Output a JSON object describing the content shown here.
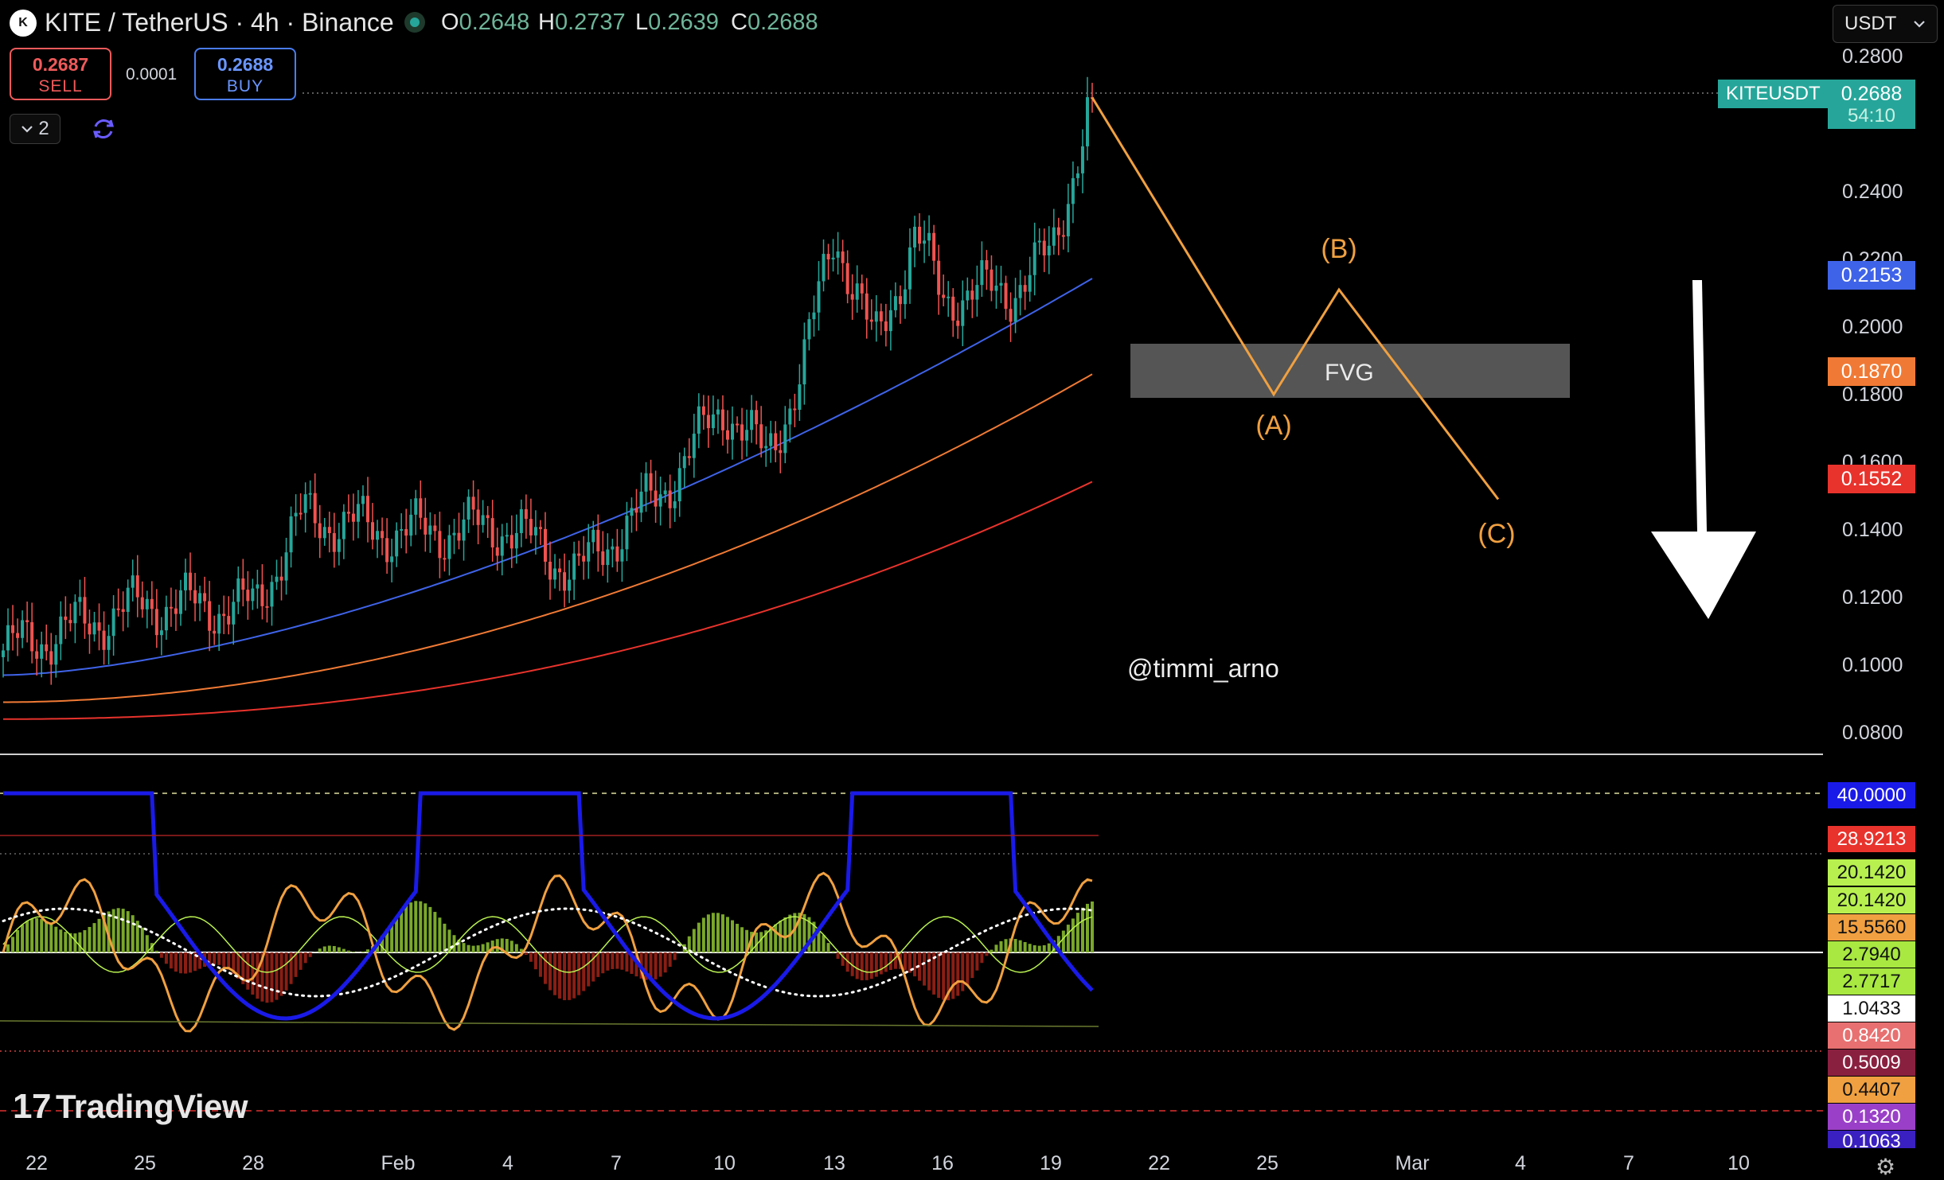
{
  "header": {
    "logo_text": "K",
    "title": "KITE / TetherUS · 4h · Binance",
    "ohlc": [
      {
        "label": "O",
        "value": "0.2648"
      },
      {
        "label": "H",
        "value": "0.2737"
      },
      {
        "label": "L",
        "value": "0.2639"
      },
      {
        "label": "C",
        "value": "0.2688"
      }
    ]
  },
  "trade": {
    "sell_price": "0.2687",
    "sell_label": "SELL",
    "spread": "0.0001",
    "buy_price": "0.2688",
    "buy_label": "BUY"
  },
  "toolbar": {
    "layers_count": "2",
    "currency": "USDT"
  },
  "price_axis": {
    "labels": [
      "0.2800",
      "0.2400",
      "0.2200",
      "0.2000",
      "0.1800",
      "0.1600",
      "0.1400",
      "0.1200",
      "0.1000",
      "0.0800"
    ],
    "symbol_tag": "KITEUSDT",
    "last_price": "0.2688",
    "countdown": "54:10",
    "ma_tags": [
      {
        "value": "0.2153",
        "color": "#3f63e8"
      },
      {
        "value": "0.1870",
        "color": "#f07a35"
      },
      {
        "value": "0.1552",
        "color": "#e8332c"
      }
    ]
  },
  "indicator_axis": {
    "tags": [
      {
        "value": "40.0000",
        "bg": "#1a1ae8",
        "fg": "#ffffff"
      },
      {
        "value": "28.9213",
        "bg": "#e8332c",
        "fg": "#ffffff"
      },
      {
        "value": "20.1420",
        "bg": "#b8f050",
        "fg": "#111111"
      },
      {
        "value": "20.1420",
        "bg": "#b8f050",
        "fg": "#111111"
      },
      {
        "value": "15.5560",
        "bg": "#f0a040",
        "fg": "#111111"
      },
      {
        "value": "2.7940",
        "bg": "#a8e840",
        "fg": "#111111"
      },
      {
        "value": "2.7717",
        "bg": "#a8e840",
        "fg": "#111111"
      },
      {
        "value": "1.0433",
        "bg": "#ffffff",
        "fg": "#111111"
      },
      {
        "value": "0.8420",
        "bg": "#e87070",
        "fg": "#ffffff"
      },
      {
        "value": "0.5009",
        "bg": "#8a2040",
        "fg": "#ffffff"
      },
      {
        "value": "0.4407",
        "bg": "#f0a040",
        "fg": "#111111"
      },
      {
        "value": "0.1320",
        "bg": "#9a40c8",
        "fg": "#ffffff"
      },
      {
        "value": "0.1063",
        "bg": "#3a20c0",
        "fg": "#ffffff"
      }
    ]
  },
  "time_axis": [
    "22",
    "25",
    "28",
    "Feb",
    "4",
    "7",
    "10",
    "13",
    "16",
    "19",
    "22",
    "25",
    "Mar",
    "4",
    "7",
    "10"
  ],
  "annotations": {
    "fvg": "FVG",
    "wave_a": "(A)",
    "wave_b": "(B)",
    "wave_c": "(C)",
    "author": "@timmi_arno"
  },
  "watermark": {
    "mark": "17",
    "text": "TradingView"
  },
  "chart_data": {
    "type": "candlestick",
    "symbol": "KITEUSDT",
    "interval": "4h",
    "ylim": [
      0.08,
      0.28
    ],
    "ma_last": [
      0.2153,
      0.187,
      0.1552
    ],
    "last_close": 0.2688,
    "approx_close_path": [
      {
        "x": "22",
        "y": 0.105
      },
      {
        "x": "25",
        "y": 0.119
      },
      {
        "x": "28",
        "y": 0.118
      },
      {
        "x": "29",
        "y": 0.145
      },
      {
        "x": "Feb",
        "y": 0.14
      },
      {
        "x": "4",
        "y": 0.142
      },
      {
        "x": "6",
        "y": 0.128
      },
      {
        "x": "7",
        "y": 0.14
      },
      {
        "x": "8",
        "y": 0.152
      },
      {
        "x": "10",
        "y": 0.178
      },
      {
        "x": "11",
        "y": 0.162
      },
      {
        "x": "12",
        "y": 0.188
      },
      {
        "x": "13",
        "y": 0.23
      },
      {
        "x": "14",
        "y": 0.195
      },
      {
        "x": "15",
        "y": 0.228
      },
      {
        "x": "16",
        "y": 0.21
      },
      {
        "x": "18",
        "y": 0.212
      },
      {
        "x": "19",
        "y": 0.222
      },
      {
        "x": "20",
        "y": 0.2688
      }
    ],
    "projection": [
      {
        "x": "20",
        "y": 0.2688
      },
      {
        "x": "24",
        "y": 0.181
      },
      {
        "x": "26",
        "y": 0.212
      },
      {
        "x": "Mar 3",
        "y": 0.15
      }
    ],
    "fvg_zone": [
      0.18,
      0.196
    ]
  }
}
